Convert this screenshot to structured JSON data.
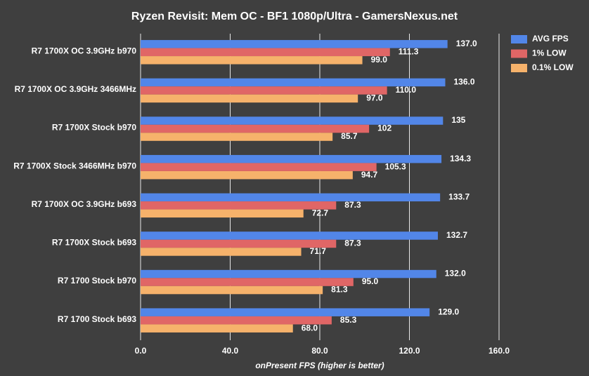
{
  "chart_data": {
    "type": "hbar",
    "title": "Ryzen Revisit: Mem OC - BF1 1080p/Ultra - GamersNexus.net",
    "x_label": "onPresent FPS (higher is better)",
    "categories": [
      "R7 1700X OC 3.9GHz b970",
      "R7 1700X OC 3.9GHz 3466MHz",
      "R7 1700X Stock b970",
      "R7 1700X Stock 3466MHz b970",
      "R7 1700X OC 3.9GHz b693",
      "R7 1700X Stock b693",
      "R7 1700 Stock b970",
      "R7 1700 Stock b693"
    ],
    "series": [
      {
        "name": "AVG FPS",
        "color": "#5286e8",
        "values": [
          137.0,
          136.0,
          135,
          134.3,
          133.7,
          132.7,
          132.0,
          129.0
        ],
        "value_labels": [
          "137.0",
          "136.0",
          "135",
          "134.3",
          "133.7",
          "132.7",
          "132.0",
          "129.0"
        ]
      },
      {
        "name": "1% LOW",
        "color": "#e06666",
        "values": [
          111.3,
          110.0,
          102,
          105.3,
          87.3,
          87.3,
          95.0,
          85.3
        ],
        "value_labels": [
          "111.3",
          "110.0",
          "102",
          "105.3",
          "87.3",
          "87.3",
          "95.0",
          "85.3"
        ]
      },
      {
        "name": "0.1% LOW",
        "color": "#f6b26b",
        "values": [
          99.0,
          97.0,
          85.7,
          94.7,
          72.7,
          71.7,
          81.3,
          68.0
        ],
        "value_labels": [
          "99.0",
          "97.0",
          "85.7",
          "94.7",
          "72.7",
          "71.7",
          "81.3",
          "68.0"
        ]
      }
    ],
    "xlim": [
      0,
      160
    ],
    "xticks": [
      {
        "value": 0,
        "label": "0.0"
      },
      {
        "value": 40,
        "label": "40.0"
      },
      {
        "value": 80,
        "label": "80.0"
      },
      {
        "value": 120,
        "label": "120.0"
      },
      {
        "value": 160,
        "label": "160.0"
      }
    ],
    "grid": true,
    "legend": "top-right"
  }
}
